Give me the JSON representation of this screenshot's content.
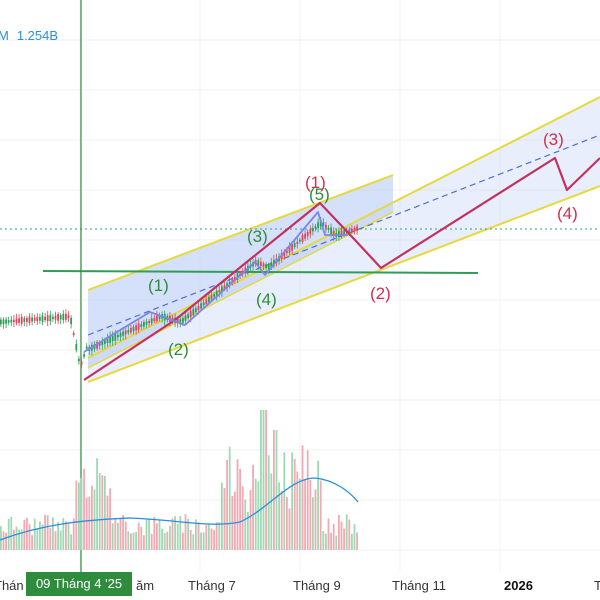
{
  "volume_readout": {
    "label": "M",
    "value": "1.254B"
  },
  "crosshair": {
    "date_label": "09 Tháng 4 '25"
  },
  "colors": {
    "up": "#2e9e57",
    "down": "#e0455b",
    "channel_fill": "#bfcff7",
    "channel_edge": "#e6d93c",
    "wave_primary": "#c2315f",
    "wave_minor": "#7b86e8",
    "crosshair": "#2f8c3c",
    "support": "#2e9e57",
    "volume_ma": "#2a8fd8",
    "price_line": "#2aa775",
    "label_green": "#2f8c3c",
    "label_red": "#d0314e"
  },
  "chart_data": {
    "type": "candlestick",
    "x_axis": {
      "tick_labels": [
        "Thán",
        "Tháng 7",
        "Tháng 9",
        "Tháng 11",
        "2026",
        "T"
      ],
      "bold_ticks": [
        "2026"
      ]
    },
    "crosshair_date": "09 Tháng 4 '25",
    "wave_labels_minor": [
      "(1)",
      "(2)",
      "(3)",
      "(4)",
      "(5)"
    ],
    "wave_labels_major": [
      "(1)",
      "(2)",
      "(3)",
      "(4)"
    ],
    "grid": true,
    "legend": "none"
  },
  "partial_tick": "ăm"
}
